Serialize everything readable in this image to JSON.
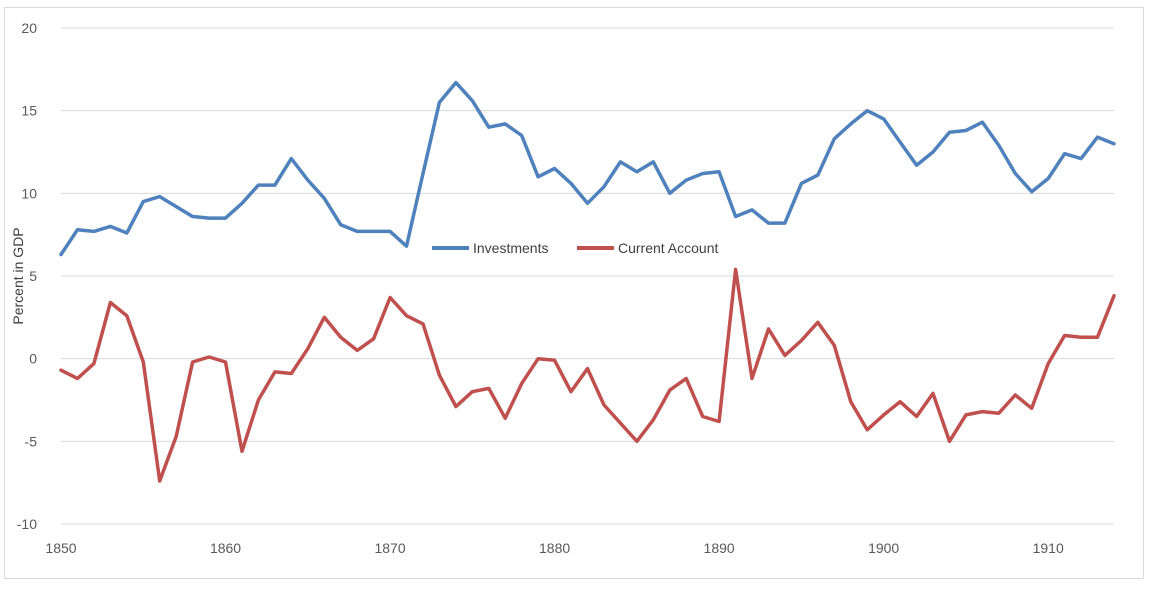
{
  "chart_data": {
    "type": "line",
    "title": "",
    "xlabel": "",
    "ylabel": "Percent in GDP",
    "xlim": [
      1850,
      1914
    ],
    "ylim": [
      -10,
      20
    ],
    "x_ticks": [
      "1850",
      "1860",
      "1870",
      "1880",
      "1890",
      "1900",
      "1910"
    ],
    "y_ticks": [
      "20",
      "15",
      "10",
      "5",
      "0",
      "-5",
      "-10"
    ],
    "grid": "horizontal",
    "legend_position": "center",
    "x": [
      1850,
      1851,
      1852,
      1853,
      1854,
      1855,
      1856,
      1857,
      1858,
      1859,
      1860,
      1861,
      1862,
      1863,
      1864,
      1865,
      1866,
      1867,
      1868,
      1869,
      1870,
      1871,
      1872,
      1873,
      1874,
      1875,
      1876,
      1877,
      1878,
      1879,
      1880,
      1881,
      1882,
      1883,
      1884,
      1885,
      1886,
      1887,
      1888,
      1889,
      1890,
      1891,
      1892,
      1893,
      1894,
      1895,
      1896,
      1897,
      1898,
      1899,
      1900,
      1901,
      1902,
      1903,
      1904,
      1905,
      1906,
      1907,
      1908,
      1909,
      1910,
      1911,
      1912,
      1913,
      1914
    ],
    "series": [
      {
        "name": "Investments",
        "color": "#4f81bd",
        "values": [
          6.3,
          7.8,
          7.7,
          8.0,
          7.6,
          9.5,
          9.8,
          9.2,
          8.6,
          8.5,
          8.5,
          9.4,
          10.5,
          10.5,
          12.1,
          10.8,
          9.7,
          8.1,
          7.7,
          7.7,
          7.7,
          6.8,
          11.2,
          15.5,
          16.7,
          15.6,
          14.0,
          14.2,
          13.5,
          11.0,
          11.5,
          10.6,
          9.4,
          10.4,
          11.9,
          11.3,
          11.9,
          10.0,
          10.8,
          11.2,
          11.3,
          8.6,
          9.0,
          8.2,
          8.2,
          10.6,
          11.1,
          13.3,
          14.2,
          15.0,
          14.5,
          13.1,
          11.7,
          12.5,
          13.7,
          13.8,
          14.3,
          12.9,
          11.2,
          10.1,
          10.9,
          12.4,
          12.1,
          13.4,
          13.0
        ]
      },
      {
        "name": "Current Account",
        "color": "#c0504d",
        "values": [
          -0.7,
          -1.2,
          -0.3,
          3.4,
          2.6,
          -0.2,
          -7.4,
          -4.7,
          -0.2,
          0.1,
          -0.2,
          -5.6,
          -2.5,
          -0.8,
          -0.9,
          0.6,
          2.5,
          1.3,
          0.5,
          1.2,
          3.7,
          2.6,
          2.1,
          -1.0,
          -2.9,
          -2.0,
          -1.8,
          -3.6,
          -1.5,
          0.0,
          -0.1,
          -2.0,
          -0.6,
          -2.8,
          -3.9,
          -5.0,
          -3.7,
          -1.9,
          -1.2,
          -3.5,
          -3.8,
          5.4,
          -1.2,
          1.8,
          0.2,
          1.1,
          2.2,
          0.8,
          -2.6,
          -4.3,
          -3.4,
          -2.6,
          -3.5,
          -2.1,
          -5.0,
          -3.4,
          -3.2,
          -3.3,
          -2.2,
          -3.0,
          -0.3,
          1.4,
          1.3,
          1.3,
          3.8
        ]
      }
    ]
  }
}
